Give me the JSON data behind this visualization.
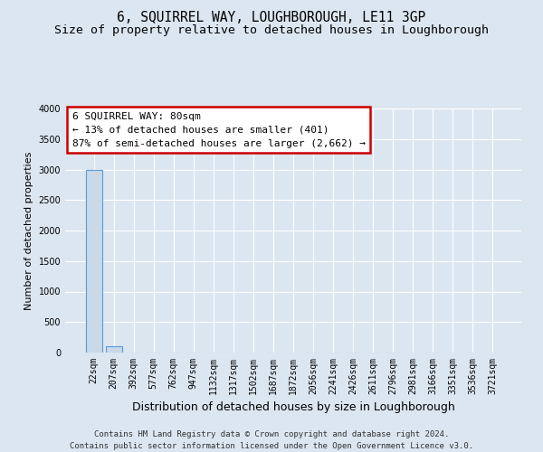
{
  "title": "6, SQUIRREL WAY, LOUGHBOROUGH, LE11 3GP",
  "subtitle": "Size of property relative to detached houses in Loughborough",
  "xlabel": "Distribution of detached houses by size in Loughborough",
  "ylabel": "Number of detached properties",
  "categories": [
    "22sqm",
    "207sqm",
    "392sqm",
    "577sqm",
    "762sqm",
    "947sqm",
    "1132sqm",
    "1317sqm",
    "1502sqm",
    "1687sqm",
    "1872sqm",
    "2056sqm",
    "2241sqm",
    "2426sqm",
    "2611sqm",
    "2796sqm",
    "2981sqm",
    "3166sqm",
    "3351sqm",
    "3536sqm",
    "3721sqm"
  ],
  "bar_heights": [
    3000,
    100,
    0,
    0,
    0,
    0,
    0,
    0,
    0,
    0,
    0,
    0,
    0,
    0,
    0,
    0,
    0,
    0,
    0,
    0,
    0
  ],
  "bar_color": "#c9d9e8",
  "bar_edge_color": "#5b9bd5",
  "background_color": "#dce6f0",
  "grid_color": "#ffffff",
  "annotation_text": "6 SQUIRREL WAY: 80sqm\n← 13% of detached houses are smaller (401)\n87% of semi-detached houses are larger (2,662) →",
  "annotation_box_color": "#ffffff",
  "annotation_box_edge_color": "#cc0000",
  "ylim": [
    0,
    4000
  ],
  "yticks": [
    0,
    500,
    1000,
    1500,
    2000,
    2500,
    3000,
    3500,
    4000
  ],
  "footer_line1": "Contains HM Land Registry data © Crown copyright and database right 2024.",
  "footer_line2": "Contains public sector information licensed under the Open Government Licence v3.0.",
  "title_fontsize": 10.5,
  "subtitle_fontsize": 9.5,
  "xlabel_fontsize": 9,
  "ylabel_fontsize": 8,
  "tick_fontsize": 7,
  "annotation_fontsize": 8,
  "footer_fontsize": 6.5
}
